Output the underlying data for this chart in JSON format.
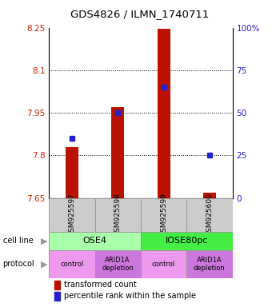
{
  "title": "GDS4826 / ILMN_1740711",
  "samples": [
    "GSM925597",
    "GSM925598",
    "GSM925599",
    "GSM925600"
  ],
  "bar_values": [
    7.83,
    7.97,
    8.245,
    7.668
  ],
  "bar_bottom": 7.65,
  "percentile_values": [
    35,
    50,
    65,
    25
  ],
  "cell_line_labels": [
    "OSE4",
    "IOSE80pc"
  ],
  "cell_line_colors": [
    "#aaffaa",
    "#44ee44"
  ],
  "cell_line_spans": [
    [
      0,
      2
    ],
    [
      2,
      4
    ]
  ],
  "protocols": [
    "control",
    "ARID1A\ndepletion",
    "control",
    "ARID1A\ndepletion"
  ],
  "protocol_colors": [
    "#ee99ee",
    "#cc77dd",
    "#ee99ee",
    "#cc77dd"
  ],
  "ylim_left": [
    7.65,
    8.25
  ],
  "ylim_right": [
    0,
    100
  ],
  "yticks_left": [
    7.65,
    7.8,
    7.95,
    8.1,
    8.25
  ],
  "yticks_right": [
    0,
    25,
    50,
    75,
    100
  ],
  "ytick_labels_right": [
    "0",
    "25",
    "50",
    "75",
    "100%"
  ],
  "bar_color": "#bb1100",
  "percentile_color": "#2222cc",
  "sample_box_color": "#cccccc",
  "legend_items": [
    {
      "color": "#bb1100",
      "label": "transformed count"
    },
    {
      "color": "#2222cc",
      "label": "percentile rank within the sample"
    }
  ]
}
